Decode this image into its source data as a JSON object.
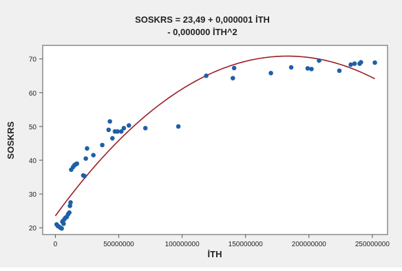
{
  "chart_data": {
    "type": "scatter",
    "title_line1": "SOSKRS = 23,49 + 0,000001 İTH",
    "title_line2": "- 0,000000 İTH^2",
    "xlabel": "İTH",
    "ylabel": "SOSKRS",
    "xlim": [
      -10000000,
      262000000
    ],
    "ylim": [
      18,
      74
    ],
    "xticks": [
      0,
      50000000,
      100000000,
      150000000,
      200000000,
      250000000
    ],
    "xtick_labels": [
      "0",
      "50000000",
      "100000000",
      "150000000",
      "200000000",
      "250000000"
    ],
    "yticks": [
      20,
      30,
      40,
      50,
      60,
      70
    ],
    "ytick_labels": [
      "20",
      "30",
      "40",
      "50",
      "60",
      "70"
    ],
    "grid": false,
    "point_color": "#1f5fa8",
    "fit_color": "#9b1c24",
    "background_color": "#f0f0f0",
    "plot_background": "#ffffff",
    "points": [
      [
        1000000,
        21.0
      ],
      [
        2000000,
        20.5
      ],
      [
        3000000,
        20.3
      ],
      [
        4000000,
        20.0
      ],
      [
        5000000,
        19.8
      ],
      [
        5500000,
        21.8
      ],
      [
        6000000,
        22.0
      ],
      [
        6500000,
        21.2
      ],
      [
        7000000,
        22.5
      ],
      [
        8000000,
        23.0
      ],
      [
        9000000,
        23.2
      ],
      [
        10000000,
        24.0
      ],
      [
        11000000,
        24.5
      ],
      [
        11500000,
        26.5
      ],
      [
        12000000,
        27.5
      ],
      [
        12500000,
        37.2
      ],
      [
        14000000,
        38.0
      ],
      [
        15000000,
        38.5
      ],
      [
        16000000,
        38.8
      ],
      [
        17000000,
        39.0
      ],
      [
        22000000,
        35.5
      ],
      [
        23000000,
        35.3
      ],
      [
        24000000,
        40.5
      ],
      [
        25000000,
        43.5
      ],
      [
        30000000,
        41.5
      ],
      [
        37000000,
        44.5
      ],
      [
        42000000,
        49.0
      ],
      [
        43000000,
        51.5
      ],
      [
        45000000,
        46.5
      ],
      [
        47000000,
        48.5
      ],
      [
        49000000,
        48.5
      ],
      [
        52000000,
        48.5
      ],
      [
        54000000,
        49.5
      ],
      [
        58000000,
        50.3
      ],
      [
        71000000,
        49.5
      ],
      [
        97000000,
        50.0
      ],
      [
        119000000,
        65.0
      ],
      [
        140000000,
        64.3
      ],
      [
        141000000,
        67.3
      ],
      [
        170000000,
        65.8
      ],
      [
        186000000,
        67.5
      ],
      [
        199000000,
        67.2
      ],
      [
        202000000,
        67.0
      ],
      [
        208000000,
        69.5
      ],
      [
        224000000,
        66.5
      ],
      [
        233000000,
        68.3
      ],
      [
        236000000,
        68.6
      ],
      [
        240000000,
        68.6
      ],
      [
        241000000,
        69.0
      ],
      [
        252000000,
        68.9
      ]
    ],
    "fit": {
      "x_start": 0,
      "x_end": 252000000
    }
  }
}
